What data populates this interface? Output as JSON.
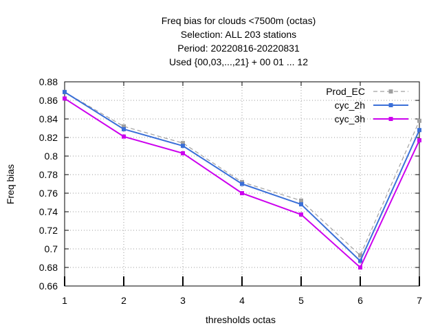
{
  "chart_data": {
    "type": "line",
    "title_lines": [
      "Freq bias  for clouds <7500m (octas)",
      "Selection: ALL    203 stations",
      "Period: 20220816-20220831",
      "Used {00,03,...,21} + 00 01 ... 12"
    ],
    "xlabel": "thresholds octas",
    "ylabel": "Freq bias",
    "x": [
      1,
      2,
      3,
      4,
      5,
      6,
      7
    ],
    "xlim": [
      1,
      7
    ],
    "ylim": [
      0.66,
      0.88
    ],
    "x_ticks": [
      "1",
      "2",
      "3",
      "4",
      "5",
      "6",
      "7"
    ],
    "y_ticks": [
      "0.66",
      "0.68",
      "0.7",
      "0.72",
      "0.74",
      "0.76",
      "0.78",
      "0.8",
      "0.82",
      "0.84",
      "0.86",
      "0.88"
    ],
    "grid": true,
    "legend_position": "top-right",
    "series": [
      {
        "name": "Prod_EC",
        "color": "#a0a0a0",
        "dashed": true,
        "values": [
          0.869,
          0.832,
          0.814,
          0.772,
          0.752,
          0.693,
          0.838
        ]
      },
      {
        "name": "cyc_2h",
        "color": "#3a6fd8",
        "dashed": false,
        "values": [
          0.869,
          0.829,
          0.811,
          0.77,
          0.748,
          0.687,
          0.828
        ]
      },
      {
        "name": "cyc_3h",
        "color": "#cc00ee",
        "dashed": false,
        "values": [
          0.862,
          0.821,
          0.803,
          0.76,
          0.737,
          0.68,
          0.817
        ]
      }
    ]
  }
}
